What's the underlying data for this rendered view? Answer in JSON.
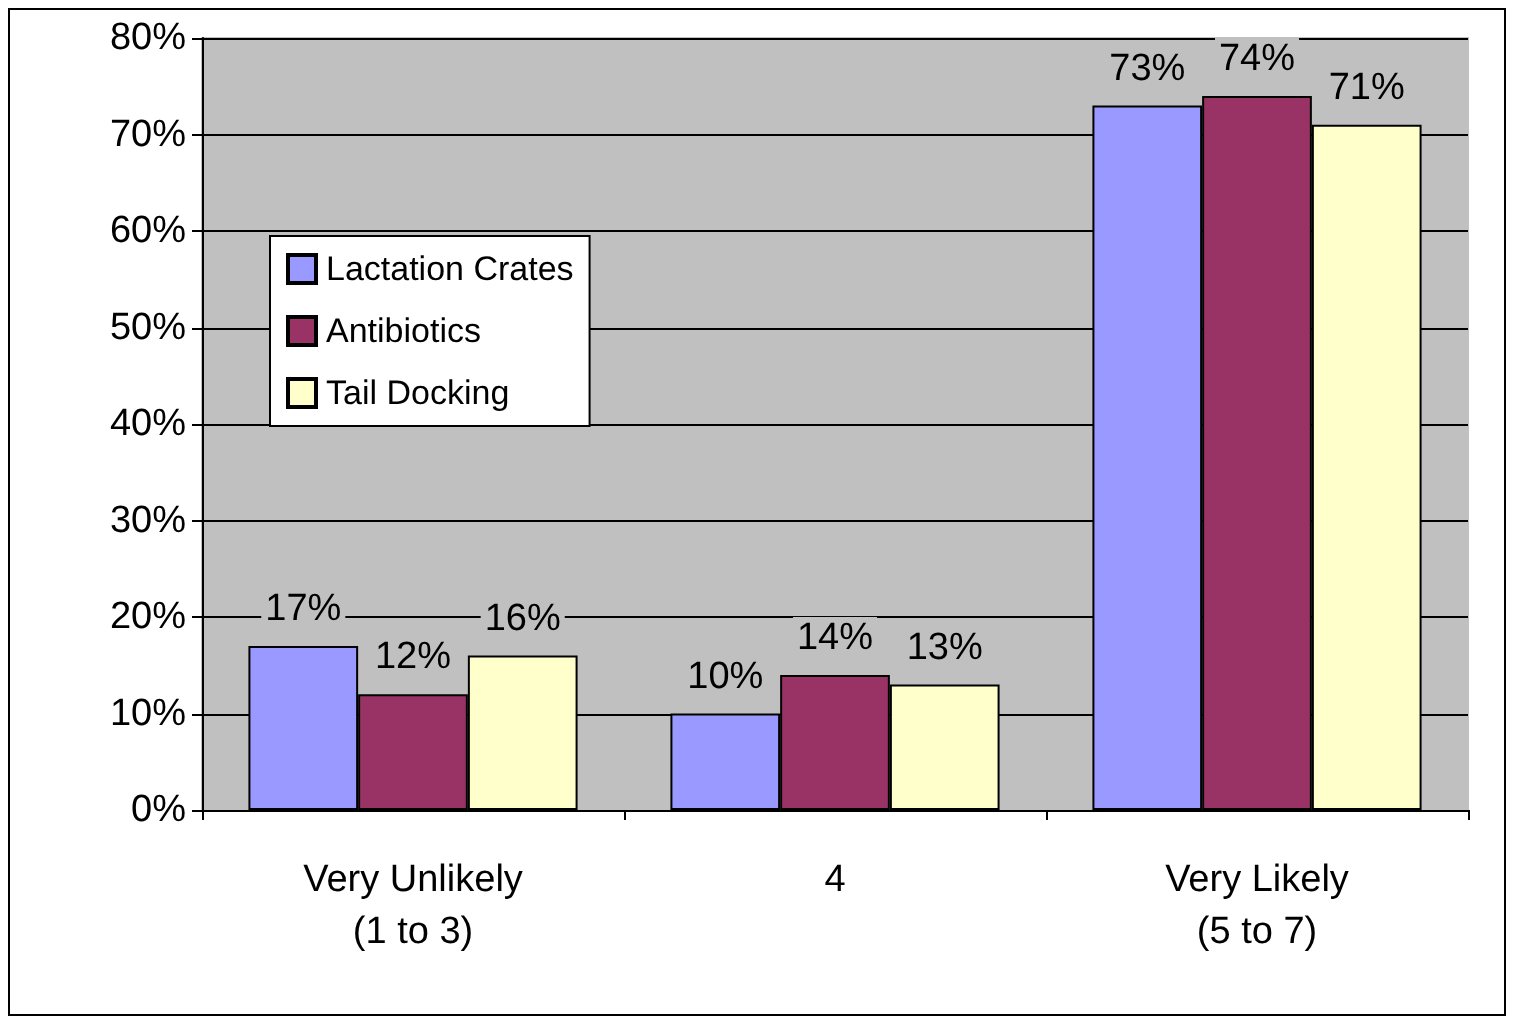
{
  "chart_data": {
    "type": "bar",
    "categories": [
      "Very Unlikely\n(1 to 3)",
      "4",
      "Very Likely\n(5 to 7)"
    ],
    "series": [
      {
        "name": "Lactation Crates",
        "color": "#9999ff",
        "values": [
          17,
          10,
          73
        ],
        "value_labels": [
          "17%",
          "10%",
          "73%"
        ]
      },
      {
        "name": "Antibiotics",
        "color": "#993366",
        "values": [
          12,
          14,
          74
        ],
        "value_labels": [
          "12%",
          "14%",
          "74%"
        ]
      },
      {
        "name": "Tail Docking",
        "color": "#ffffcc",
        "values": [
          16,
          13,
          71
        ],
        "value_labels": [
          "16%",
          "13%",
          "71%"
        ]
      }
    ],
    "ylim": [
      0,
      80
    ],
    "yticks": [
      {
        "value": 0,
        "label": "0%"
      },
      {
        "value": 10,
        "label": "10%"
      },
      {
        "value": 20,
        "label": "20%"
      },
      {
        "value": 30,
        "label": "30%"
      },
      {
        "value": 40,
        "label": "40%"
      },
      {
        "value": 50,
        "label": "50%"
      },
      {
        "value": 60,
        "label": "60%"
      },
      {
        "value": 70,
        "label": "70%"
      },
      {
        "value": 80,
        "label": "80%"
      }
    ],
    "grid": "y",
    "legend": "left"
  }
}
